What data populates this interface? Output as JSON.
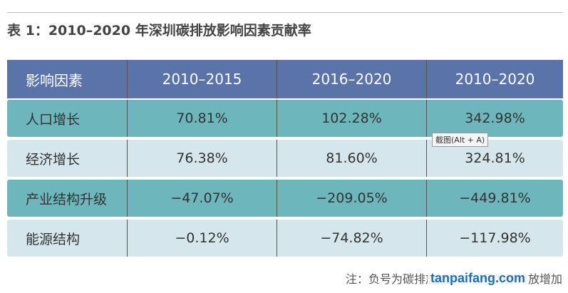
{
  "title": "表 1：2010–2020 年深圳碳排放影响因素贡献率",
  "table": {
    "header": [
      "影响因素",
      "2010–2015",
      "2016–2020",
      "2010–2020"
    ],
    "rows": [
      [
        "人口增长",
        "70.81%",
        "102.28%",
        "342.98%"
      ],
      [
        "经济增长",
        "76.38%",
        "81.60%",
        "324.81%"
      ],
      [
        "产业结构升级",
        "−47.07%",
        "−209.05%",
        "−449.81%"
      ],
      [
        "能源结构",
        "−0.12%",
        "−74.82%",
        "−117.98%"
      ]
    ]
  },
  "tooltip": "截图(Alt + A)",
  "note": "注：负号为碳排放减少，正号为碳排放增加",
  "watermark": "tanpaifang.com"
}
